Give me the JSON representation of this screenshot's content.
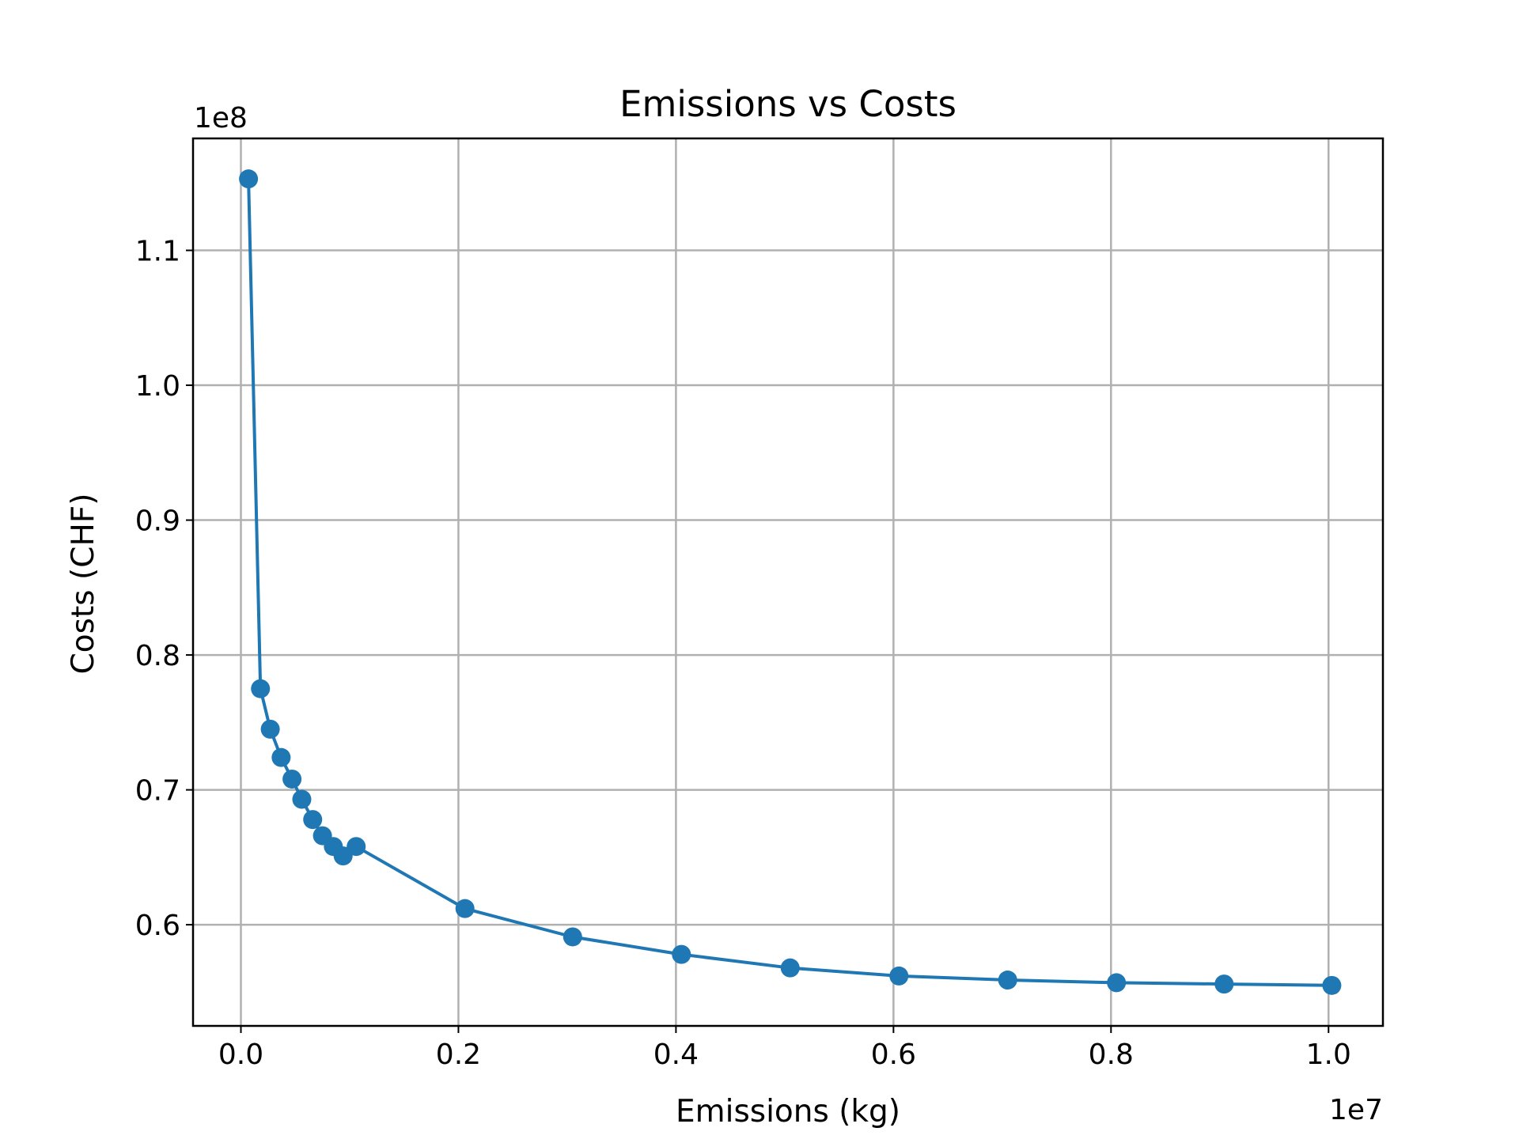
{
  "chart_data": {
    "type": "line",
    "title": "Emissions vs Costs",
    "xlabel": "Emissions (kg)",
    "ylabel": "Costs (CHF)",
    "x_multiplier": "1e7",
    "y_multiplier": "1e8",
    "xlim": [
      -0.044,
      1.05
    ],
    "ylim": [
      0.525,
      1.183
    ],
    "xticks": [
      0.0,
      0.2,
      0.4,
      0.6,
      0.8,
      1.0
    ],
    "xtick_labels": [
      "0.0",
      "0.2",
      "0.4",
      "0.6",
      "0.8",
      "1.0"
    ],
    "yticks": [
      0.6,
      0.7,
      0.8,
      0.9,
      1.0,
      1.1
    ],
    "ytick_labels": [
      "0.6",
      "0.7",
      "0.8",
      "0.9",
      "1.0",
      "1.1"
    ],
    "grid": true,
    "series": [
      {
        "color": "#1f77b4",
        "marker": "circle",
        "x": [
          0.007,
          0.018,
          0.027,
          0.037,
          0.047,
          0.056,
          0.066,
          0.075,
          0.085,
          0.094,
          0.106,
          0.206,
          0.305,
          0.405,
          0.505,
          0.605,
          0.705,
          0.805,
          0.904,
          1.003
        ],
        "y": [
          1.153,
          0.775,
          0.745,
          0.724,
          0.708,
          0.693,
          0.678,
          0.666,
          0.658,
          0.651,
          0.658,
          0.612,
          0.591,
          0.578,
          0.568,
          0.562,
          0.559,
          0.557,
          0.556,
          0.555
        ]
      }
    ]
  }
}
